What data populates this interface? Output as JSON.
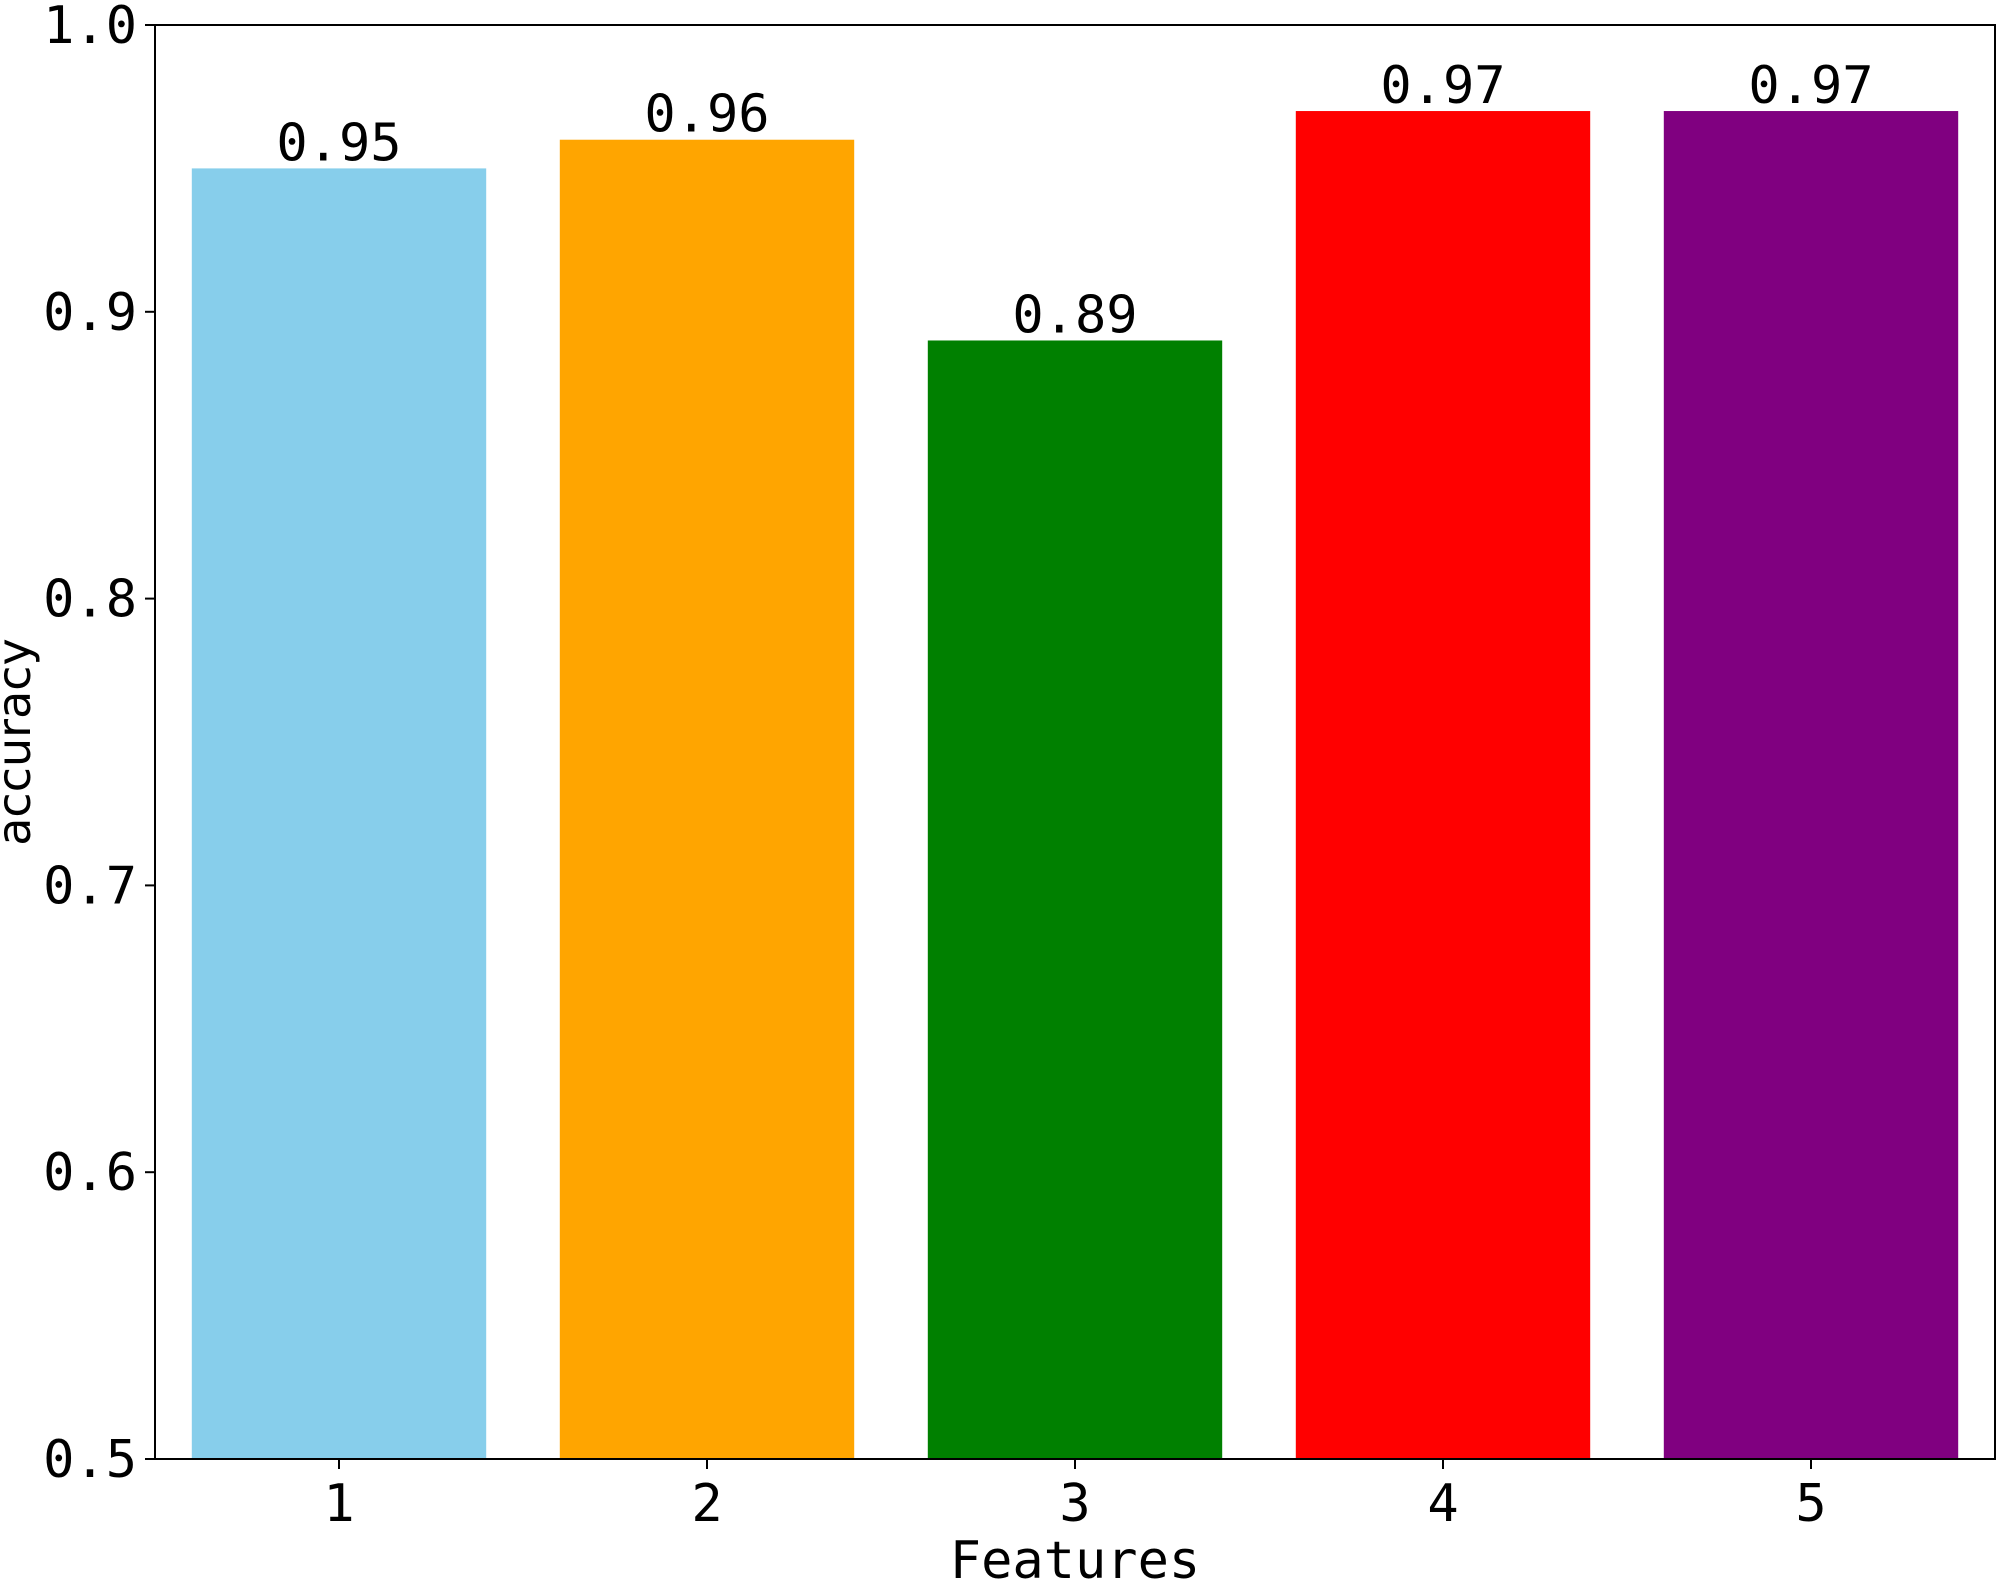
{
  "chart_data": {
    "type": "bar",
    "title": "",
    "xlabel": "Features",
    "ylabel": "accuracy",
    "ylim": [
      0.5,
      1.0
    ],
    "yticks": [
      "0.5",
      "0.6",
      "0.7",
      "0.8",
      "0.9",
      "1.0"
    ],
    "grid": false,
    "categories": [
      "1",
      "2",
      "3",
      "4",
      "5"
    ],
    "values": [
      0.95,
      0.96,
      0.89,
      0.97,
      0.97
    ],
    "value_labels": [
      "0.95",
      "0.96",
      "0.89",
      "0.97",
      "0.97"
    ],
    "colors": [
      "#87ceeb",
      "#ffa500",
      "#008000",
      "#ff0000",
      "#800080"
    ]
  }
}
